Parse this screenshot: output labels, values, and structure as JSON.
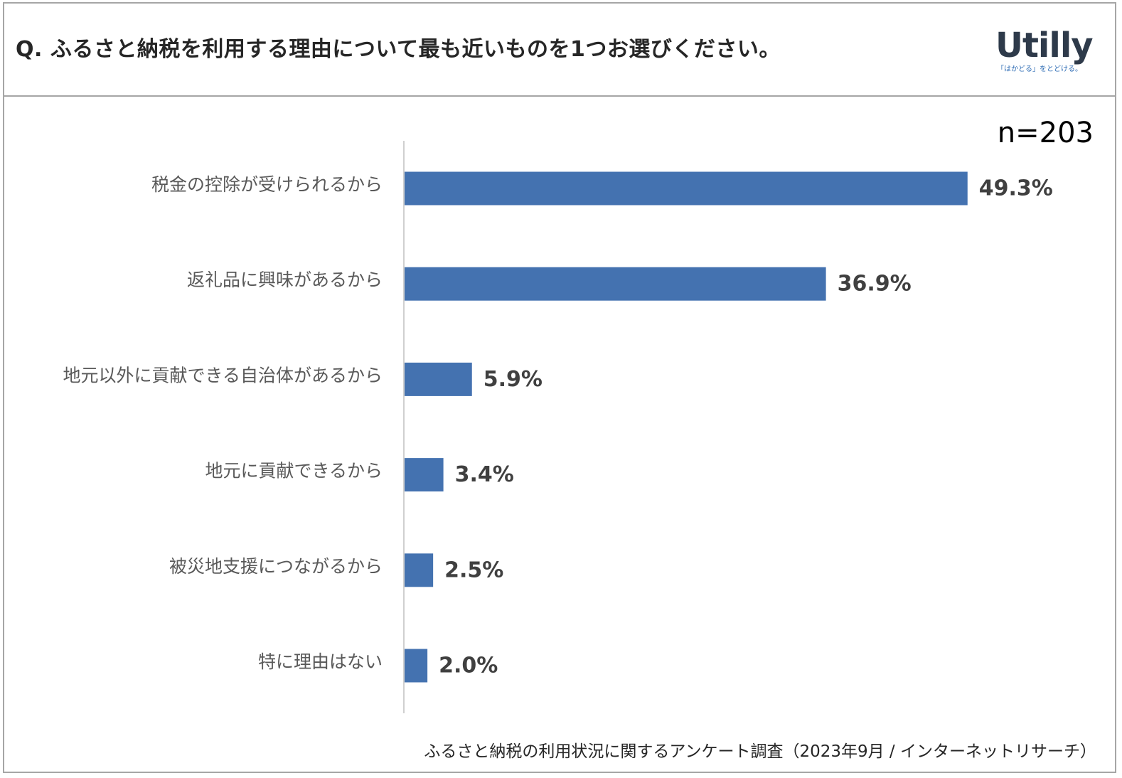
{
  "header": {
    "question": "Q. ふるさと納税を利用する理由について最も近いものを1つお選びください。",
    "logo_text": "Utilly",
    "logo_tagline": "「はかどる」をとどける。"
  },
  "sample_size": "n=203",
  "footer": {
    "source": "ふるさと納税の利用状況に関するアンケート調査（2023年9月 / インターネットリサーチ）"
  },
  "colors": {
    "bar": "#4472b0",
    "axis": "#d0d0d0"
  },
  "chart_data": {
    "type": "bar",
    "orientation": "horizontal",
    "categories": [
      "税金の控除が受けられるから",
      "返礼品に興味があるから",
      "地元以外に貢献できる自治体があるから",
      "地元に貢献できるから",
      "被災地支援につながるから",
      "特に理由はない"
    ],
    "values": [
      49.3,
      36.9,
      5.9,
      3.4,
      2.5,
      2.0
    ],
    "value_labels": [
      "49.3%",
      "36.9%",
      "5.9%",
      "3.4%",
      "2.5%",
      "2.0%"
    ],
    "unit": "%",
    "xlim": [
      0,
      55
    ],
    "grid": false,
    "legend": "none"
  }
}
